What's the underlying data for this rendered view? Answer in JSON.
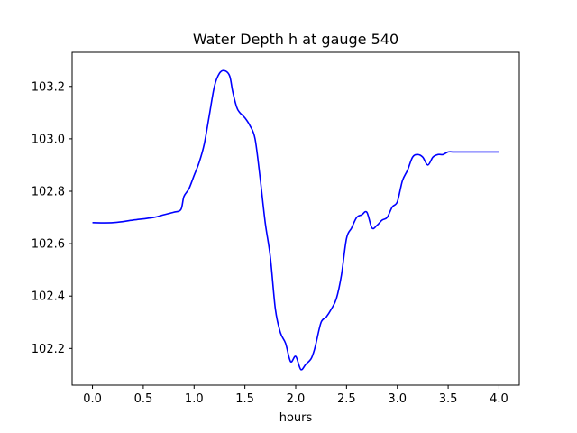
{
  "chart_data": {
    "type": "line",
    "title": "Water Depth h at gauge 540",
    "xlabel": "hours",
    "ylabel": "",
    "xlim": [
      -0.2,
      4.2
    ],
    "ylim": [
      102.06,
      103.33
    ],
    "xticks": [
      0.0,
      0.5,
      1.0,
      1.5,
      2.0,
      2.5,
      3.0,
      3.5,
      4.0
    ],
    "xtick_labels": [
      "0.0",
      "0.5",
      "1.0",
      "1.5",
      "2.0",
      "2.5",
      "3.0",
      "3.5",
      "4.0"
    ],
    "yticks": [
      102.2,
      102.4,
      102.6,
      102.8,
      103.0,
      103.2
    ],
    "ytick_labels": [
      "102.2",
      "102.4",
      "102.6",
      "102.8",
      "103.0",
      "103.2"
    ],
    "grid": false,
    "line_color": "#0000ff",
    "series": [
      {
        "x": [
          0.0,
          0.2,
          0.4,
          0.6,
          0.7,
          0.8,
          0.87,
          0.9,
          0.95,
          1.0,
          1.05,
          1.1,
          1.15,
          1.2,
          1.25,
          1.3,
          1.35,
          1.38,
          1.42,
          1.45,
          1.5,
          1.55,
          1.6,
          1.65,
          1.7,
          1.75,
          1.8,
          1.85,
          1.9,
          1.95,
          2.0,
          2.05,
          2.1,
          2.15,
          2.18,
          2.2,
          2.25,
          2.3,
          2.35,
          2.4,
          2.45,
          2.5,
          2.55,
          2.6,
          2.65,
          2.7,
          2.75,
          2.8,
          2.85,
          2.9,
          2.95,
          3.0,
          3.05,
          3.1,
          3.15,
          3.2,
          3.25,
          3.3,
          3.35,
          3.4,
          3.45,
          3.5,
          3.55,
          3.6,
          3.65,
          3.7,
          3.75,
          3.8,
          3.85,
          3.9,
          3.95,
          4.0
        ],
        "y": [
          102.68,
          102.68,
          102.69,
          102.7,
          102.71,
          102.72,
          102.73,
          102.78,
          102.81,
          102.86,
          102.91,
          102.98,
          103.09,
          103.2,
          103.25,
          103.26,
          103.24,
          103.18,
          103.12,
          103.1,
          103.08,
          103.05,
          103.0,
          102.85,
          102.68,
          102.55,
          102.35,
          102.26,
          102.22,
          102.15,
          102.17,
          102.12,
          102.14,
          102.16,
          102.19,
          102.22,
          102.3,
          102.32,
          102.35,
          102.39,
          102.48,
          102.62,
          102.66,
          102.7,
          102.71,
          102.72,
          102.66,
          102.67,
          102.69,
          102.7,
          102.74,
          102.76,
          102.84,
          102.88,
          102.93,
          102.94,
          102.93,
          102.9,
          102.93,
          102.94,
          102.94,
          102.95,
          102.95,
          102.95,
          102.95,
          102.95,
          102.95,
          102.95,
          102.95,
          102.95,
          102.95,
          102.95
        ]
      }
    ]
  }
}
